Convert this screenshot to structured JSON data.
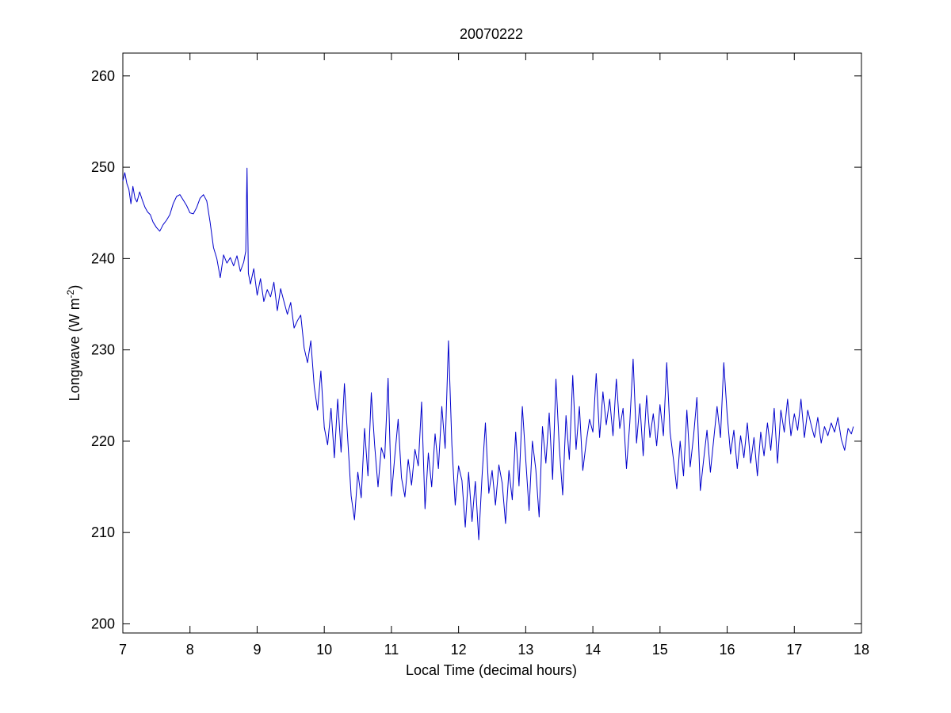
{
  "chart_data": {
    "type": "line",
    "title": "20070222",
    "xlabel": "Local Time (decimal hours)",
    "ylabel": "Longwave (W m",
    "ylabel_sup": "-2",
    "ylabel_suffix": ")",
    "xlim": [
      7,
      18
    ],
    "ylim": [
      199,
      262.5
    ],
    "xticks": [
      7,
      8,
      9,
      10,
      11,
      12,
      13,
      14,
      15,
      16,
      17,
      18
    ],
    "yticks": [
      200,
      210,
      220,
      230,
      240,
      250,
      260
    ],
    "line_color": "#0000cc",
    "grid": false,
    "legend": "none",
    "series": [
      {
        "points": [
          [
            7.0,
            248.5
          ],
          [
            7.03,
            249.4
          ],
          [
            7.06,
            248.2
          ],
          [
            7.09,
            247.6
          ],
          [
            7.12,
            246.0
          ],
          [
            7.15,
            247.9
          ],
          [
            7.18,
            246.6
          ],
          [
            7.21,
            246.2
          ],
          [
            7.25,
            247.3
          ],
          [
            7.29,
            246.4
          ],
          [
            7.33,
            245.6
          ],
          [
            7.37,
            245.1
          ],
          [
            7.41,
            244.8
          ],
          [
            7.45,
            244.0
          ],
          [
            7.5,
            243.4
          ],
          [
            7.55,
            243.0
          ],
          [
            7.6,
            243.7
          ],
          [
            7.65,
            244.2
          ],
          [
            7.7,
            244.8
          ],
          [
            7.75,
            246.0
          ],
          [
            7.8,
            246.8
          ],
          [
            7.85,
            247.0
          ],
          [
            7.9,
            246.4
          ],
          [
            7.95,
            245.8
          ],
          [
            8.0,
            245.0
          ],
          [
            8.05,
            244.9
          ],
          [
            8.1,
            245.6
          ],
          [
            8.15,
            246.6
          ],
          [
            8.2,
            247.0
          ],
          [
            8.25,
            246.3
          ],
          [
            8.3,
            244.0
          ],
          [
            8.35,
            241.2
          ],
          [
            8.4,
            240.0
          ],
          [
            8.45,
            237.9
          ],
          [
            8.5,
            240.4
          ],
          [
            8.55,
            239.5
          ],
          [
            8.6,
            240.1
          ],
          [
            8.65,
            239.2
          ],
          [
            8.7,
            240.3
          ],
          [
            8.75,
            238.6
          ],
          [
            8.8,
            239.6
          ],
          [
            8.83,
            240.8
          ],
          [
            8.85,
            249.9
          ],
          [
            8.87,
            238.4
          ],
          [
            8.9,
            237.2
          ],
          [
            8.95,
            238.9
          ],
          [
            9.0,
            236.0
          ],
          [
            9.05,
            237.8
          ],
          [
            9.1,
            235.3
          ],
          [
            9.15,
            236.6
          ],
          [
            9.2,
            235.8
          ],
          [
            9.25,
            237.4
          ],
          [
            9.3,
            234.3
          ],
          [
            9.35,
            236.7
          ],
          [
            9.4,
            235.3
          ],
          [
            9.45,
            233.9
          ],
          [
            9.5,
            235.2
          ],
          [
            9.55,
            232.4
          ],
          [
            9.6,
            233.2
          ],
          [
            9.65,
            233.8
          ],
          [
            9.7,
            230.2
          ],
          [
            9.75,
            228.6
          ],
          [
            9.8,
            231.0
          ],
          [
            9.85,
            226.0
          ],
          [
            9.9,
            223.4
          ],
          [
            9.95,
            227.7
          ],
          [
            10.0,
            221.5
          ],
          [
            10.05,
            219.6
          ],
          [
            10.1,
            223.6
          ],
          [
            10.15,
            218.2
          ],
          [
            10.2,
            224.6
          ],
          [
            10.25,
            218.8
          ],
          [
            10.3,
            226.3
          ],
          [
            10.35,
            220.2
          ],
          [
            10.4,
            214.0
          ],
          [
            10.45,
            211.4
          ],
          [
            10.5,
            216.6
          ],
          [
            10.55,
            213.8
          ],
          [
            10.6,
            221.4
          ],
          [
            10.65,
            216.2
          ],
          [
            10.7,
            225.3
          ],
          [
            10.75,
            219.6
          ],
          [
            10.8,
            215.0
          ],
          [
            10.85,
            219.3
          ],
          [
            10.9,
            218.1
          ],
          [
            10.95,
            226.9
          ],
          [
            11.0,
            214.0
          ],
          [
            11.05,
            218.3
          ],
          [
            11.1,
            222.4
          ],
          [
            11.15,
            216.0
          ],
          [
            11.2,
            213.9
          ],
          [
            11.25,
            218.0
          ],
          [
            11.3,
            215.2
          ],
          [
            11.35,
            219.1
          ],
          [
            11.4,
            217.3
          ],
          [
            11.45,
            224.3
          ],
          [
            11.5,
            212.6
          ],
          [
            11.55,
            218.7
          ],
          [
            11.6,
            215.0
          ],
          [
            11.65,
            220.8
          ],
          [
            11.7,
            217.0
          ],
          [
            11.75,
            223.8
          ],
          [
            11.8,
            219.2
          ],
          [
            11.85,
            231.0
          ],
          [
            11.9,
            219.6
          ],
          [
            11.95,
            213.0
          ],
          [
            12.0,
            217.3
          ],
          [
            12.05,
            215.7
          ],
          [
            12.1,
            210.6
          ],
          [
            12.15,
            216.6
          ],
          [
            12.2,
            211.2
          ],
          [
            12.25,
            215.6
          ],
          [
            12.3,
            209.2
          ],
          [
            12.35,
            216.2
          ],
          [
            12.4,
            222.0
          ],
          [
            12.45,
            214.3
          ],
          [
            12.5,
            216.8
          ],
          [
            12.55,
            213.0
          ],
          [
            12.6,
            217.4
          ],
          [
            12.65,
            215.4
          ],
          [
            12.7,
            211.0
          ],
          [
            12.75,
            216.8
          ],
          [
            12.8,
            213.6
          ],
          [
            12.85,
            221.0
          ],
          [
            12.9,
            215.1
          ],
          [
            12.95,
            223.8
          ],
          [
            13.0,
            218.0
          ],
          [
            13.05,
            212.4
          ],
          [
            13.1,
            220.0
          ],
          [
            13.15,
            216.9
          ],
          [
            13.2,
            211.7
          ],
          [
            13.25,
            221.6
          ],
          [
            13.3,
            217.6
          ],
          [
            13.35,
            223.1
          ],
          [
            13.4,
            215.8
          ],
          [
            13.45,
            226.8
          ],
          [
            13.5,
            219.4
          ],
          [
            13.55,
            214.1
          ],
          [
            13.6,
            222.8
          ],
          [
            13.65,
            218.0
          ],
          [
            13.7,
            227.2
          ],
          [
            13.75,
            219.1
          ],
          [
            13.8,
            223.8
          ],
          [
            13.85,
            216.8
          ],
          [
            13.9,
            219.8
          ],
          [
            13.95,
            222.4
          ],
          [
            14.0,
            221.0
          ],
          [
            14.05,
            227.4
          ],
          [
            14.1,
            220.4
          ],
          [
            14.15,
            225.4
          ],
          [
            14.2,
            221.8
          ],
          [
            14.25,
            224.6
          ],
          [
            14.3,
            220.6
          ],
          [
            14.35,
            226.8
          ],
          [
            14.4,
            221.4
          ],
          [
            14.45,
            223.6
          ],
          [
            14.5,
            217.0
          ],
          [
            14.55,
            222.0
          ],
          [
            14.6,
            229.0
          ],
          [
            14.65,
            219.8
          ],
          [
            14.7,
            224.1
          ],
          [
            14.75,
            218.4
          ],
          [
            14.8,
            225.0
          ],
          [
            14.85,
            220.4
          ],
          [
            14.9,
            223.0
          ],
          [
            14.95,
            219.5
          ],
          [
            15.0,
            224.0
          ],
          [
            15.05,
            220.6
          ],
          [
            15.1,
            228.6
          ],
          [
            15.15,
            221.0
          ],
          [
            15.2,
            218.0
          ],
          [
            15.25,
            214.8
          ],
          [
            15.3,
            220.0
          ],
          [
            15.35,
            216.2
          ],
          [
            15.4,
            223.4
          ],
          [
            15.45,
            217.2
          ],
          [
            15.5,
            220.6
          ],
          [
            15.55,
            224.8
          ],
          [
            15.6,
            214.6
          ],
          [
            15.65,
            218.0
          ],
          [
            15.7,
            221.2
          ],
          [
            15.75,
            216.6
          ],
          [
            15.8,
            220.2
          ],
          [
            15.85,
            223.8
          ],
          [
            15.9,
            220.4
          ],
          [
            15.95,
            228.6
          ],
          [
            16.0,
            223.0
          ],
          [
            16.05,
            218.6
          ],
          [
            16.1,
            221.2
          ],
          [
            16.15,
            217.0
          ],
          [
            16.2,
            220.6
          ],
          [
            16.25,
            218.2
          ],
          [
            16.3,
            222.0
          ],
          [
            16.35,
            217.6
          ],
          [
            16.4,
            220.4
          ],
          [
            16.45,
            216.2
          ],
          [
            16.5,
            221.0
          ],
          [
            16.55,
            218.4
          ],
          [
            16.6,
            222.0
          ],
          [
            16.65,
            219.0
          ],
          [
            16.7,
            223.6
          ],
          [
            16.75,
            217.6
          ],
          [
            16.8,
            223.4
          ],
          [
            16.85,
            221.0
          ],
          [
            16.9,
            224.6
          ],
          [
            16.95,
            220.6
          ],
          [
            17.0,
            223.0
          ],
          [
            17.05,
            221.2
          ],
          [
            17.1,
            224.6
          ],
          [
            17.15,
            220.4
          ],
          [
            17.2,
            223.4
          ],
          [
            17.25,
            221.8
          ],
          [
            17.3,
            220.4
          ],
          [
            17.35,
            222.6
          ],
          [
            17.4,
            219.8
          ],
          [
            17.45,
            221.6
          ],
          [
            17.5,
            220.6
          ],
          [
            17.55,
            222.0
          ],
          [
            17.6,
            221.0
          ],
          [
            17.65,
            222.6
          ],
          [
            17.7,
            220.2
          ],
          [
            17.75,
            219.0
          ],
          [
            17.8,
            221.4
          ],
          [
            17.85,
            220.8
          ],
          [
            17.88,
            221.6
          ]
        ]
      }
    ]
  }
}
